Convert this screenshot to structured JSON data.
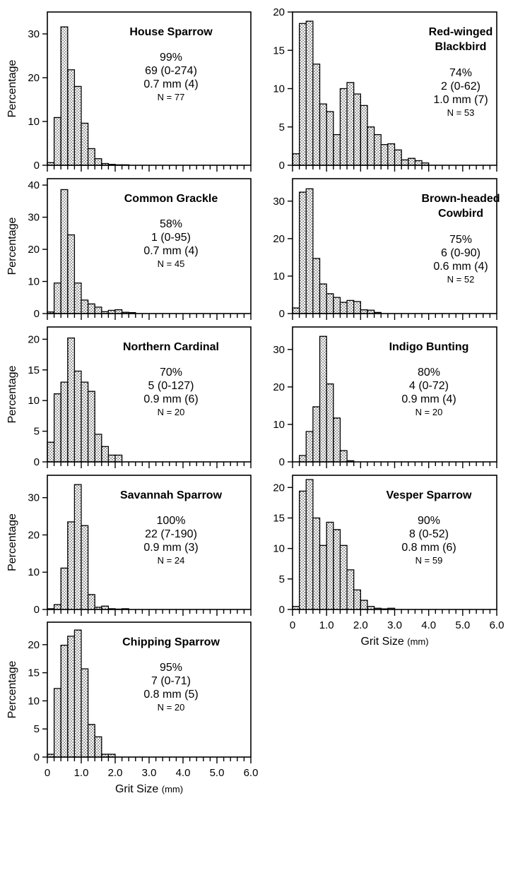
{
  "chart_data": [
    {
      "type": "bar",
      "species": [
        "House Sparrow"
      ],
      "stats": [
        "99%",
        "69 (0-274)",
        "0.7 mm (4)",
        "N = 77"
      ],
      "ylabel": "Percentage",
      "xlabel": "",
      "xlim": [
        0,
        6.0
      ],
      "ylim": [
        0,
        35
      ],
      "yticks": [
        0,
        10,
        20,
        30
      ],
      "xticklabels": [],
      "bin_width": 0.2,
      "values": [
        0.6,
        10.9,
        31.6,
        21.8,
        18,
        9.6,
        3.8,
        1.5,
        0.4,
        0.2,
        0.1,
        0.1
      ]
    },
    {
      "type": "bar",
      "species": [
        "Red-winged",
        "Blackbird"
      ],
      "stats": [
        "74%",
        "2 (0-62)",
        "1.0 mm (7)",
        "N = 53"
      ],
      "ylabel": "",
      "xlabel": "",
      "xlim": [
        0,
        6.0
      ],
      "ylim": [
        0,
        20
      ],
      "yticks": [
        0,
        5,
        10,
        15,
        20
      ],
      "xticklabels": [],
      "bin_width": 0.2,
      "values": [
        1.5,
        18.5,
        18.8,
        13.2,
        8.0,
        7.0,
        4.0,
        10.0,
        10.8,
        9.3,
        7.8,
        5.0,
        4.0,
        2.7,
        2.8,
        2.0,
        0.7,
        0.9,
        0.6,
        0.3
      ]
    },
    {
      "type": "bar",
      "species": [
        "Common Grackle"
      ],
      "stats": [
        "58%",
        "1 (0-95)",
        "0.7 mm (4)",
        "N = 45"
      ],
      "ylabel": "Percentage",
      "xlabel": "",
      "xlim": [
        0,
        6.0
      ],
      "ylim": [
        0,
        42
      ],
      "yticks": [
        0,
        10,
        20,
        30,
        40
      ],
      "xticklabels": [],
      "bin_width": 0.2,
      "values": [
        0.5,
        9.5,
        38.6,
        24.5,
        9.5,
        4.2,
        3.0,
        2.0,
        0.6,
        1.0,
        1.2,
        0.4,
        0.3
      ]
    },
    {
      "type": "bar",
      "species": [
        "Brown-headed",
        "Cowbird"
      ],
      "stats": [
        "75%",
        "6 (0-90)",
        "0.6 mm (4)",
        "N = 52"
      ],
      "ylabel": "",
      "xlabel": "",
      "xlim": [
        0,
        6.0
      ],
      "ylim": [
        0,
        36
      ],
      "yticks": [
        0,
        10,
        20,
        30
      ],
      "xticklabels": [],
      "bin_width": 0.2,
      "values": [
        1.5,
        32.4,
        33.3,
        14.7,
        7.9,
        5.3,
        4.3,
        3.0,
        3.5,
        3.2,
        1.0,
        0.9,
        0.3
      ]
    },
    {
      "type": "bar",
      "species": [
        "Northern Cardinal"
      ],
      "stats": [
        "70%",
        "5 (0-127)",
        "0.9 mm (6)",
        "N = 20"
      ],
      "ylabel": "Percentage",
      "xlabel": "",
      "xlim": [
        0,
        6.0
      ],
      "ylim": [
        0,
        22
      ],
      "yticks": [
        0,
        5,
        10,
        15,
        20
      ],
      "xticklabels": [],
      "bin_width": 0.2,
      "values": [
        3.2,
        11.1,
        13.0,
        20.2,
        14.8,
        13.0,
        11.5,
        4.5,
        2.5,
        1.1,
        1.1
      ]
    },
    {
      "type": "bar",
      "species": [
        "Indigo Bunting"
      ],
      "stats": [
        "80%",
        "4 (0-72)",
        "0.9 mm (4)",
        "N = 20"
      ],
      "ylabel": "",
      "xlabel": "",
      "xlim": [
        0,
        6.0
      ],
      "ylim": [
        0,
        36
      ],
      "yticks": [
        0,
        10,
        20,
        30
      ],
      "xticklabels": [],
      "bin_width": 0.2,
      "values": [
        0,
        1.7,
        8.1,
        14.7,
        33.5,
        20.8,
        11.7,
        3.0,
        0.3
      ]
    },
    {
      "type": "bar",
      "species": [
        "Savannah Sparrow"
      ],
      "stats": [
        "100%",
        "22 (7-190)",
        "0.9 mm (3)",
        "N = 24"
      ],
      "ylabel": "Percentage",
      "xlabel": "",
      "xlim": [
        0,
        6.0
      ],
      "ylim": [
        0,
        36
      ],
      "yticks": [
        0,
        10,
        20,
        30
      ],
      "xticklabels": [],
      "bin_width": 0.2,
      "values": [
        0.2,
        1.3,
        11.1,
        23.5,
        33.5,
        22.5,
        4.0,
        0.6,
        0.9,
        0.2,
        0.1,
        0.2
      ]
    },
    {
      "type": "bar",
      "species": [
        "Vesper Sparrow"
      ],
      "stats": [
        "90%",
        "8 (0-52)",
        "0.8 mm (6)",
        "N = 59"
      ],
      "ylabel": "",
      "xlabel": "Grit Size (mm)",
      "xlim": [
        0,
        6.0
      ],
      "ylim": [
        0,
        22
      ],
      "yticks": [
        0,
        5,
        10,
        15,
        20
      ],
      "xticklabels": [
        "0",
        "1.0",
        "2.0",
        "3.0",
        "4.0",
        "5.0",
        "6.0"
      ],
      "bin_width": 0.2,
      "values": [
        0.5,
        19.4,
        21.3,
        15.0,
        10.5,
        14.3,
        13.1,
        10.5,
        6.5,
        3.2,
        1.5,
        0.5,
        0.2,
        0.1,
        0.2
      ]
    },
    {
      "type": "bar",
      "species": [
        "Chipping Sparrow"
      ],
      "stats": [
        "95%",
        "7 (0-71)",
        "0.8 mm (5)",
        "N = 20"
      ],
      "ylabel": "Percentage",
      "xlabel": "Grit Size (mm)",
      "xlim": [
        0,
        6.0
      ],
      "ylim": [
        0,
        24
      ],
      "yticks": [
        0,
        5,
        10,
        15,
        20
      ],
      "xticklabels": [
        "0",
        "1.0",
        "2.0",
        "3.0",
        "4.0",
        "5.0",
        "6.0"
      ],
      "bin_width": 0.2,
      "values": [
        0.5,
        12.2,
        19.9,
        21.5,
        22.6,
        15.7,
        5.8,
        3.6,
        0.5,
        0.5
      ]
    }
  ]
}
